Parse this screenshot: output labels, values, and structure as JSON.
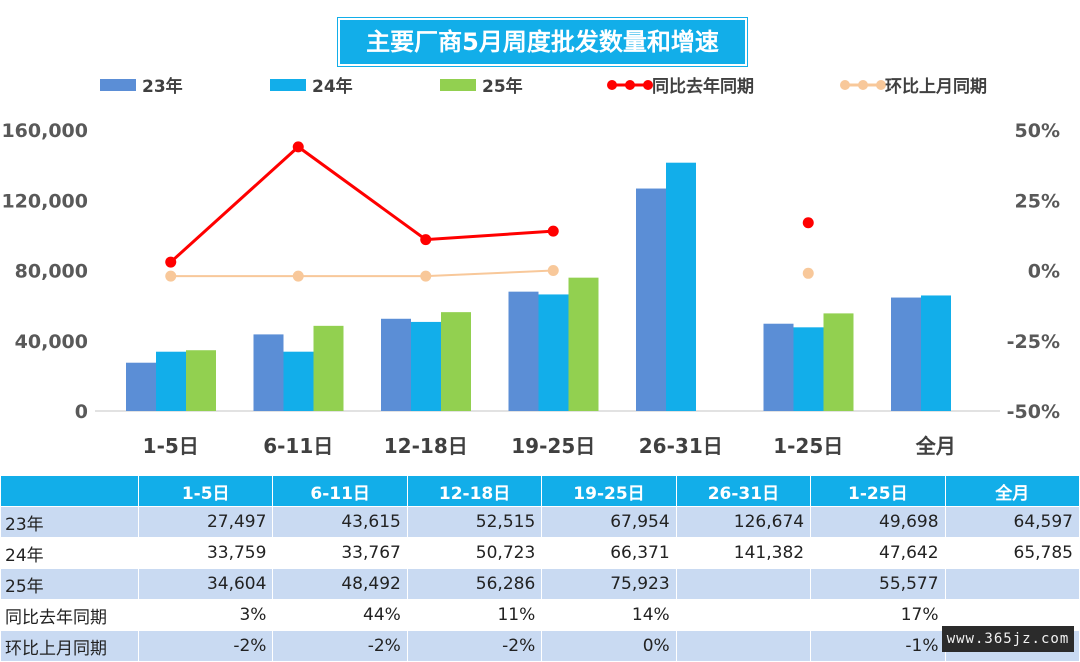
{
  "title": "主要厂商5月周度批发数量和增速",
  "colors": {
    "y23": "#5b8ed6",
    "y24": "#12aeea",
    "y25": "#92d050",
    "yoy": "#ff0000",
    "mom": "#f8c89a",
    "title_bg": "#12aee9",
    "row_band": "#c9daf2"
  },
  "legend": [
    "23年",
    "24年",
    "25年",
    "同比去年同期",
    "环比上月同期"
  ],
  "chart_data": {
    "type": "bar",
    "title": "主要厂商5月周度批发数量和增速",
    "categories": [
      "1-5日",
      "6-11日",
      "12-18日",
      "19-25日",
      "26-31日",
      "1-25日",
      "全月"
    ],
    "series": [
      {
        "name": "23年",
        "type": "bar",
        "axis": "left",
        "values": [
          27497,
          43615,
          52515,
          67954,
          126674,
          49698,
          64597
        ]
      },
      {
        "name": "24年",
        "type": "bar",
        "axis": "left",
        "values": [
          33759,
          33767,
          50723,
          66371,
          141382,
          47642,
          65785
        ]
      },
      {
        "name": "25年",
        "type": "bar",
        "axis": "left",
        "values": [
          34604,
          48492,
          56286,
          75923,
          null,
          55577,
          null
        ]
      },
      {
        "name": "同比去年同期",
        "type": "line",
        "axis": "right",
        "values": [
          3,
          44,
          11,
          14,
          null,
          17,
          null
        ]
      },
      {
        "name": "环比上月同期",
        "type": "line",
        "axis": "right",
        "values": [
          -2,
          -2,
          -2,
          0,
          null,
          -1,
          null
        ]
      }
    ],
    "y_left": {
      "min": 0,
      "max": 160000,
      "ticks": [
        "0",
        "40,000",
        "80,000",
        "120,000",
        "160,000"
      ]
    },
    "y_right": {
      "min": -50,
      "max": 50,
      "ticks": [
        "-50%",
        "-25%",
        "0%",
        "25%",
        "50%"
      ]
    },
    "legend_position": "top",
    "grid": false
  },
  "table": {
    "headers": [
      "",
      "1-5日",
      "6-11日",
      "12-18日",
      "19-25日",
      "26-31日",
      "1-25日",
      "全月"
    ],
    "rows": [
      {
        "label": "23年",
        "cells": [
          "27,497",
          "43,615",
          "52,515",
          "67,954",
          "126,674",
          "49,698",
          "64,597"
        ]
      },
      {
        "label": "24年",
        "cells": [
          "33,759",
          "33,767",
          "50,723",
          "66,371",
          "141,382",
          "47,642",
          "65,785"
        ]
      },
      {
        "label": "25年",
        "cells": [
          "34,604",
          "48,492",
          "56,286",
          "75,923",
          "",
          "55,577",
          ""
        ]
      },
      {
        "label": "同比去年同期",
        "cells": [
          "3%",
          "44%",
          "11%",
          "14%",
          "",
          "17%",
          ""
        ]
      },
      {
        "label": "环比上月同期",
        "cells": [
          "-2%",
          "-2%",
          "-2%",
          "0%",
          "",
          "-1%",
          ""
        ]
      }
    ]
  },
  "watermark": "www.365jz.com"
}
